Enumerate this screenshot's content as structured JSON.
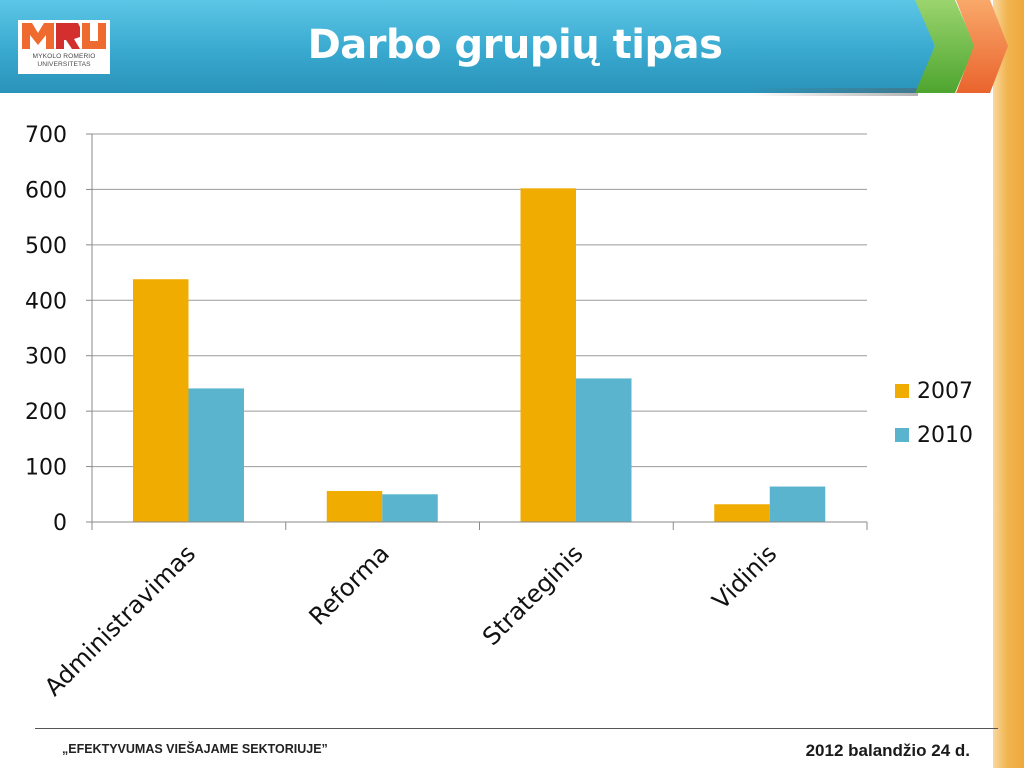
{
  "header": {
    "title": "Darbo grupių tipas",
    "logo": {
      "mark": "MRU",
      "line1": "MYKOLO ROMERIO",
      "line2": "UNIVERSITETAS",
      "colors": {
        "orange": "#ee6a2e",
        "red": "#d42f2f"
      }
    },
    "colors": {
      "bar": "#3aaad0",
      "chevron_green": "#5cb338",
      "chevron_orange": "#ef7a3c"
    }
  },
  "chart_data": {
    "type": "bar",
    "categories": [
      "Administravimas",
      "Reforma",
      "Strateginis",
      "Vidinis"
    ],
    "series": [
      {
        "name": "2007",
        "values": [
          438,
          56,
          602,
          32
        ],
        "color": "#f0ac00"
      },
      {
        "name": "2010",
        "values": [
          241,
          50,
          259,
          64
        ],
        "color": "#5ab4cd"
      }
    ],
    "yticks": [
      "0",
      "100",
      "200",
      "300",
      "400",
      "500",
      "600",
      "700"
    ],
    "ylim": [
      0,
      700
    ],
    "grid": true,
    "legend": "right",
    "title": "",
    "xlabel": "",
    "ylabel": ""
  },
  "footer": {
    "left": "„EFEKTYVUMAS VIEŠAJAME SEKTORIUJE”",
    "right": "2012 balandžio 24 d."
  }
}
